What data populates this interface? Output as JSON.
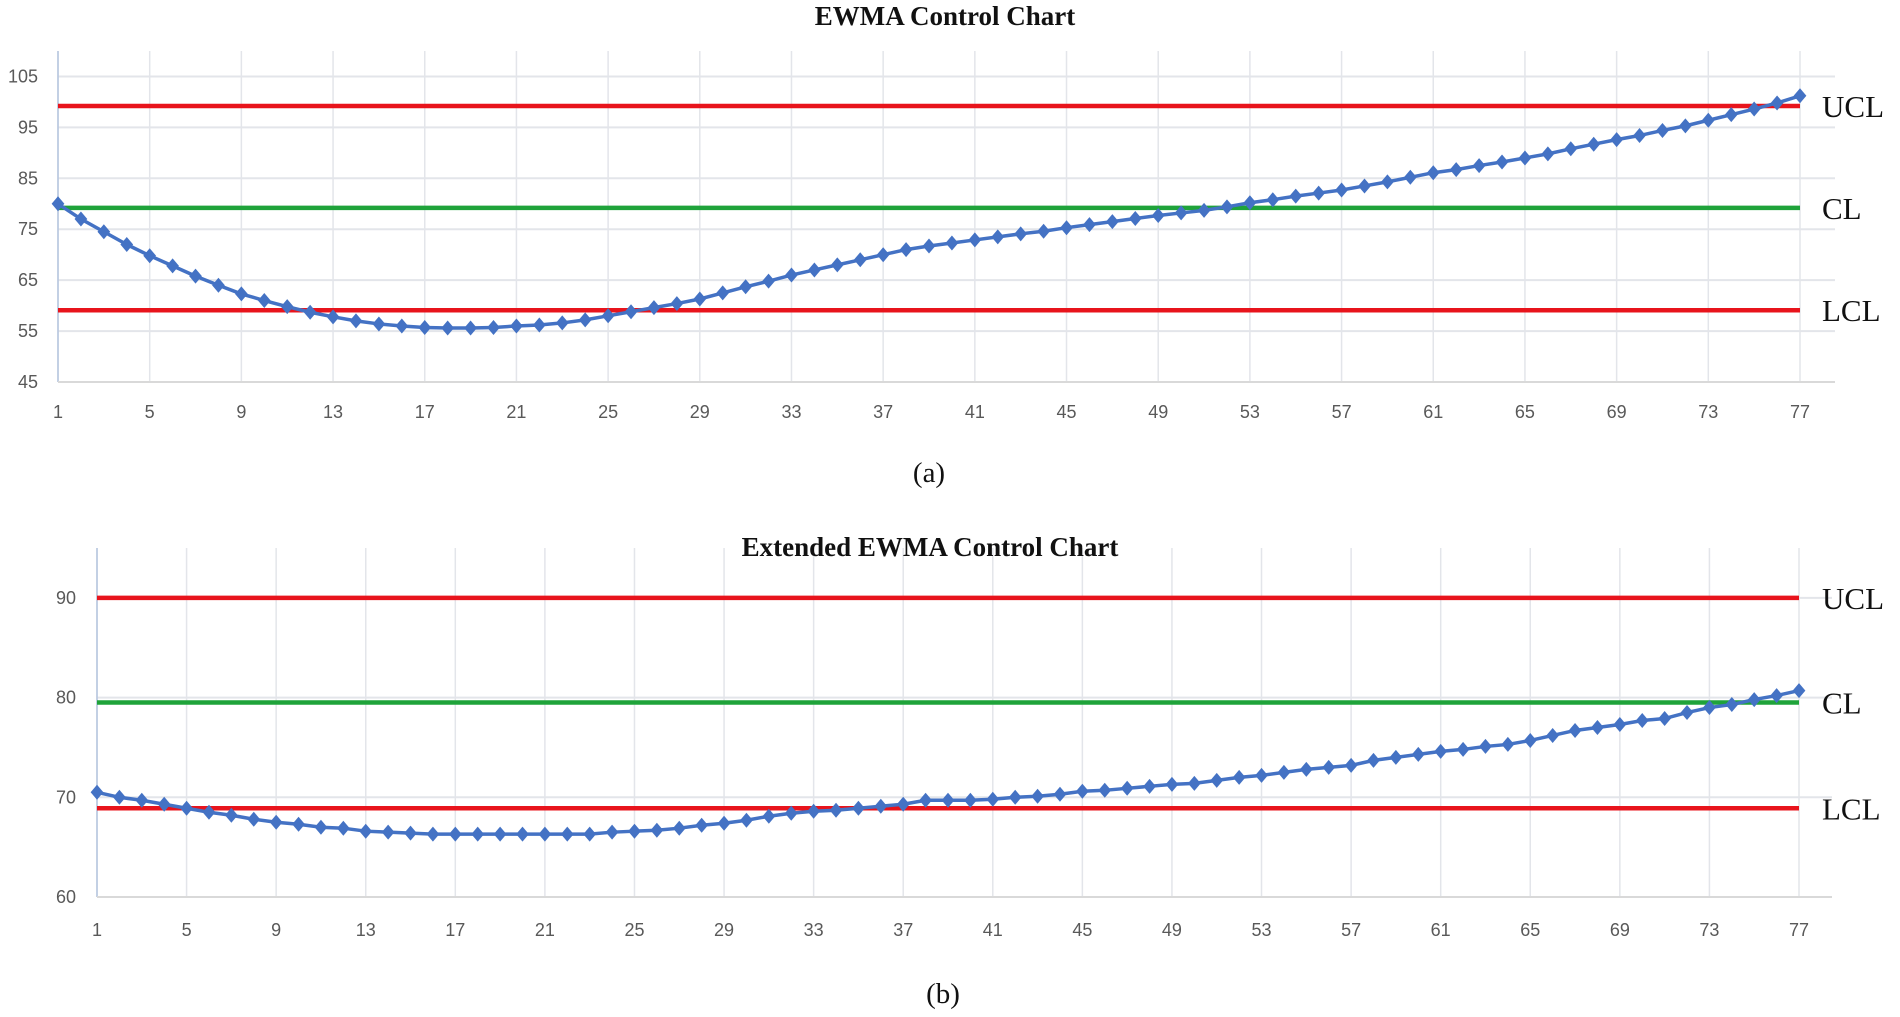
{
  "colors": {
    "series": "#4472C4",
    "ucl": "#E8141C",
    "cl": "#1FA33A",
    "lcl": "#E8141C",
    "grid": "#E3E5EA"
  },
  "chart_data": [
    {
      "type": "line",
      "title": "EWMA Control Chart",
      "caption": "(a)",
      "xlabel": "",
      "ylabel": "",
      "x_start": 1,
      "x_end": 77,
      "x_tick_step": 4,
      "x_ticks": [
        "1",
        "5",
        "9",
        "13",
        "17",
        "21",
        "25",
        "29",
        "33",
        "37",
        "41",
        "45",
        "49",
        "53",
        "57",
        "61",
        "65",
        "69",
        "73",
        "77"
      ],
      "ylim": [
        45,
        110
      ],
      "y_ticks": [
        45,
        55,
        65,
        75,
        85,
        95,
        105
      ],
      "grid": true,
      "marker": "diamond",
      "limits": [
        {
          "label": "UCL",
          "value": 99.2,
          "color_key": "ucl"
        },
        {
          "label": "CL",
          "value": 79.2,
          "color_key": "cl"
        },
        {
          "label": "LCL",
          "value": 59.1,
          "color_key": "lcl"
        }
      ],
      "values": [
        80,
        77,
        74.5,
        72,
        69.8,
        67.8,
        65.8,
        64,
        62.3,
        61,
        59.8,
        58.7,
        57.8,
        57,
        56.4,
        56,
        55.7,
        55.6,
        55.6,
        55.7,
        56,
        56.2,
        56.6,
        57.2,
        58,
        58.8,
        59.6,
        60.4,
        61.3,
        62.5,
        63.7,
        64.8,
        66,
        67,
        68,
        69,
        70,
        71,
        71.7,
        72.3,
        72.9,
        73.5,
        74.1,
        74.6,
        75.3,
        75.9,
        76.5,
        77.1,
        77.7,
        78.2,
        78.7,
        79.4,
        80.2,
        80.8,
        81.5,
        82.1,
        82.7,
        83.5,
        84.3,
        85.2,
        86.1,
        86.7,
        87.5,
        88.2,
        89,
        89.8,
        90.8,
        91.7,
        92.6,
        93.4,
        94.4,
        95.3,
        96.4,
        97.5,
        98.6,
        99.8,
        101.2
      ]
    },
    {
      "type": "line",
      "title": "Extended EWMA Control Chart",
      "caption": "(b)",
      "xlabel": "",
      "ylabel": "",
      "x_start": 1,
      "x_end": 77,
      "x_tick_step": 4,
      "x_ticks": [
        "1",
        "5",
        "9",
        "13",
        "17",
        "21",
        "25",
        "29",
        "33",
        "37",
        "41",
        "45",
        "49",
        "53",
        "57",
        "61",
        "65",
        "69",
        "73",
        "77"
      ],
      "ylim": [
        60,
        95
      ],
      "y_ticks": [
        60,
        70,
        80,
        90
      ],
      "grid": true,
      "marker": "diamond",
      "limits": [
        {
          "label": "UCL",
          "value": 90,
          "color_key": "ucl"
        },
        {
          "label": "CL",
          "value": 79.5,
          "color_key": "cl"
        },
        {
          "label": "LCL",
          "value": 68.9,
          "color_key": "lcl"
        }
      ],
      "values": [
        70.5,
        70,
        69.7,
        69.3,
        68.9,
        68.5,
        68.2,
        67.8,
        67.5,
        67.3,
        67,
        66.9,
        66.6,
        66.5,
        66.4,
        66.3,
        66.3,
        66.3,
        66.3,
        66.3,
        66.3,
        66.3,
        66.3,
        66.5,
        66.6,
        66.7,
        66.9,
        67.2,
        67.4,
        67.7,
        68.1,
        68.4,
        68.6,
        68.7,
        68.9,
        69.1,
        69.3,
        69.7,
        69.7,
        69.7,
        69.8,
        70,
        70.1,
        70.3,
        70.6,
        70.7,
        70.9,
        71.1,
        71.3,
        71.4,
        71.7,
        72,
        72.2,
        72.5,
        72.8,
        73,
        73.2,
        73.7,
        74,
        74.3,
        74.6,
        74.8,
        75.1,
        75.3,
        75.7,
        76.2,
        76.7,
        77,
        77.3,
        77.7,
        77.9,
        78.5,
        79,
        79.3,
        79.8,
        80.2,
        80.7
      ]
    }
  ]
}
